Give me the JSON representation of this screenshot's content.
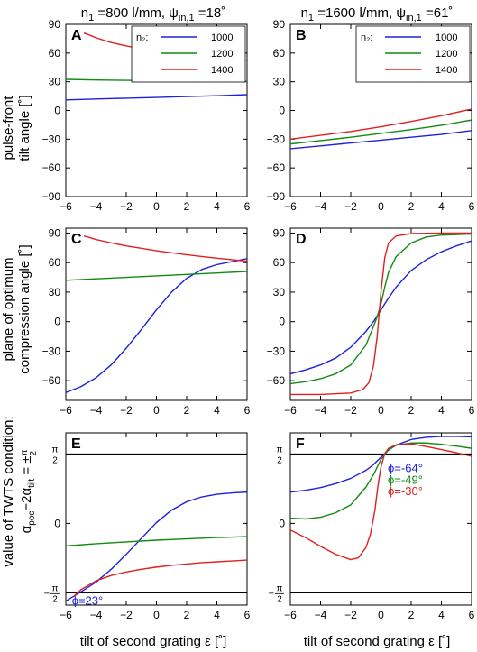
{
  "column_titles": [
    {
      "n": "n",
      "n_sub": "1",
      "n_rest": " =800 l/mm, ",
      "psi": "ψ",
      "psi_sub": "in,1",
      "psi_rest": " =18˚"
    },
    {
      "n": "n",
      "n_sub": "1",
      "n_rest": " =1600 l/mm, ",
      "psi": "ψ",
      "psi_sub": "in,1",
      "psi_rest": " =61˚"
    }
  ],
  "row_labels": [
    [
      "pulse-front",
      "tilt angle [˚]"
    ],
    [
      "plane of optimum",
      "compression angle [˚]"
    ],
    [
      "value of TWTS condition:",
      "α_poc−2α_tilt = ±π/2"
    ]
  ],
  "xlabel": "tilt of second grating ε [˚]",
  "legend_title": "n₂:",
  "colors": {
    "1000": "#1f1fe0",
    "1200": "#118a11",
    "1400": "#e01f1f",
    "axes": "#000000"
  },
  "chart_data": [
    {
      "panel": "A",
      "type": "line",
      "ylabel": "pulse-front tilt angle [˚]",
      "xlim": [
        -6,
        6
      ],
      "ylim": [
        -90,
        90
      ],
      "xticks": [
        "−6",
        "−4",
        "−2",
        "0",
        "2",
        "4",
        "6"
      ],
      "yticks": [
        "−90",
        "−60",
        "−30",
        "0",
        "30",
        "60",
        "90"
      ],
      "legend": [
        "1000",
        "1200",
        "1400"
      ],
      "legend_position": "top-right",
      "series": [
        {
          "name": "1000",
          "color": "#1f1fe0",
          "x": [
            -6,
            -4,
            -2,
            0,
            2,
            4,
            6
          ],
          "y": [
            11,
            12,
            12.8,
            13.6,
            14.5,
            15.4,
            16.5
          ]
        },
        {
          "name": "1200",
          "color": "#118a11",
          "x": [
            -6,
            -4,
            -2,
            0,
            2,
            4,
            6
          ],
          "y": [
            32.5,
            31.9,
            31.5,
            31.2,
            30.9,
            30.6,
            30.5
          ]
        },
        {
          "name": "1400",
          "color": "#e01f1f",
          "x": [
            -4.8,
            -4,
            -3,
            -2,
            -1,
            0,
            1,
            2,
            3,
            4,
            5,
            6
          ],
          "y": [
            81,
            76,
            71,
            67.5,
            64.5,
            62,
            60,
            58.2,
            56.5,
            55,
            53.8,
            52.5
          ]
        }
      ]
    },
    {
      "panel": "B",
      "type": "line",
      "xlim": [
        -6,
        6
      ],
      "ylim": [
        -90,
        90
      ],
      "xticks": [
        "−6",
        "−4",
        "−2",
        "0",
        "2",
        "4",
        "6"
      ],
      "yticks": [
        "−90",
        "−60",
        "−30",
        "0",
        "30",
        "60",
        "90"
      ],
      "legend": [
        "1000",
        "1200",
        "1400"
      ],
      "legend_position": "top-right",
      "series": [
        {
          "name": "1000",
          "color": "#1f1fe0",
          "x": [
            -6,
            -4,
            -2,
            0,
            2,
            4,
            6
          ],
          "y": [
            -40,
            -37,
            -34,
            -31,
            -28,
            -25,
            -21
          ]
        },
        {
          "name": "1200",
          "color": "#118a11",
          "x": [
            -6,
            -4,
            -2,
            0,
            2,
            4,
            6
          ],
          "y": [
            -35,
            -31.5,
            -28,
            -24,
            -20,
            -15.5,
            -10
          ]
        },
        {
          "name": "1400",
          "color": "#e01f1f",
          "x": [
            -6,
            -4,
            -2,
            0,
            2,
            4,
            6
          ],
          "y": [
            -30,
            -26,
            -22,
            -17,
            -11.5,
            -5.5,
            1.5
          ]
        }
      ]
    },
    {
      "panel": "C",
      "type": "line",
      "ylabel": "plane of optimum compression angle [˚]",
      "xlim": [
        -6,
        6
      ],
      "ylim": [
        -80,
        95
      ],
      "xticks": [
        "−6",
        "−4",
        "−2",
        "0",
        "2",
        "4",
        "6"
      ],
      "yticks": [
        "−90",
        "−60",
        "−30",
        "0",
        "30",
        "60",
        "90"
      ],
      "series": [
        {
          "name": "1000",
          "color": "#1f1fe0",
          "x": [
            -6,
            -5,
            -4,
            -3,
            -2,
            -1,
            0,
            1,
            2,
            3,
            4,
            5,
            6
          ],
          "y": [
            -72,
            -66,
            -57,
            -44,
            -27,
            -8,
            12,
            30,
            44,
            53,
            58,
            61,
            64
          ]
        },
        {
          "name": "1200",
          "color": "#118a11",
          "x": [
            -6,
            -4,
            -2,
            0,
            2,
            4,
            6
          ],
          "y": [
            42,
            43.5,
            45,
            46.5,
            48,
            49.5,
            51
          ]
        },
        {
          "name": "1400",
          "color": "#e01f1f",
          "x": [
            -4.8,
            -4,
            -3,
            -2,
            -1,
            0,
            1,
            2,
            3,
            4,
            5,
            6
          ],
          "y": [
            87,
            83.5,
            80,
            77,
            74.5,
            72,
            70,
            68,
            66.2,
            64.5,
            63,
            61.5
          ]
        }
      ]
    },
    {
      "panel": "D",
      "type": "line",
      "xlim": [
        -6,
        6
      ],
      "ylim": [
        -80,
        95
      ],
      "xticks": [
        "−6",
        "−4",
        "−2",
        "0",
        "2",
        "4",
        "6"
      ],
      "yticks": [
        "−90",
        "−60",
        "−30",
        "0",
        "30",
        "60",
        "90"
      ],
      "series": [
        {
          "name": "1000",
          "color": "#1f1fe0",
          "x": [
            -6,
            -5,
            -4,
            -3,
            -2,
            -1,
            -0.5,
            0,
            0.5,
            1,
            2,
            3,
            4,
            5,
            6
          ],
          "y": [
            -53,
            -49,
            -44,
            -37,
            -26,
            -10,
            0,
            12,
            24,
            35,
            52,
            63,
            71,
            77,
            82
          ]
        },
        {
          "name": "1200",
          "color": "#118a11",
          "x": [
            -6,
            -5,
            -4,
            -3,
            -2,
            -1,
            -0.5,
            -0.25,
            0,
            0.25,
            0.5,
            1,
            2,
            3,
            4,
            6
          ],
          "y": [
            -63,
            -61,
            -58,
            -53,
            -44,
            -24,
            -5,
            5,
            18,
            35,
            50,
            66,
            80,
            86,
            88,
            89
          ]
        },
        {
          "name": "1400",
          "color": "#e01f1f",
          "x": [
            -6,
            -4,
            -2,
            -1.2,
            -0.8,
            -0.5,
            -0.25,
            0,
            0.25,
            0.5,
            1,
            2,
            4,
            6
          ],
          "y": [
            -74,
            -74,
            -72.5,
            -69,
            -62,
            -45,
            -15,
            30,
            65,
            80,
            87,
            89.5,
            90,
            90
          ]
        }
      ]
    },
    {
      "panel": "E",
      "type": "line",
      "xlabel": "tilt of second grating ε [˚]",
      "ylabel": "value of TWTS condition",
      "xlim": [
        -6,
        6
      ],
      "ylim": [
        -1.85,
        2.05
      ],
      "xticks": [
        "−6",
        "−4",
        "−2",
        "0",
        "2",
        "4",
        "6"
      ],
      "ytick_values": [
        -1.5708,
        0,
        1.5708
      ],
      "reference_lines": [
        -1.5708,
        1.5708
      ],
      "annotation": {
        "text": "ϕ=23°",
        "color": "#1f1fe0"
      },
      "series": [
        {
          "name": "1000",
          "color": "#1f1fe0",
          "x": [
            -6,
            -5,
            -4,
            -3,
            -2,
            -1,
            0,
            1,
            2,
            3,
            4,
            5,
            6
          ],
          "y": [
            -1.76,
            -1.55,
            -1.33,
            -1.04,
            -0.7,
            -0.34,
            0.02,
            0.3,
            0.49,
            0.6,
            0.66,
            0.69,
            0.71
          ]
        },
        {
          "name": "1200",
          "color": "#118a11",
          "x": [
            -6,
            -4,
            -2,
            0,
            2,
            4,
            6
          ],
          "y": [
            -0.51,
            -0.46,
            -0.42,
            -0.38,
            -0.35,
            -0.32,
            -0.3
          ]
        },
        {
          "name": "1400",
          "color": "#e01f1f",
          "x": [
            -5.5,
            -5,
            -4,
            -3,
            -2,
            -1,
            0,
            1,
            2,
            3,
            4,
            5,
            6
          ],
          "y": [
            -1.66,
            -1.5,
            -1.3,
            -1.18,
            -1.1,
            -1.04,
            -0.99,
            -0.95,
            -0.92,
            -0.89,
            -0.87,
            -0.85,
            -0.83
          ]
        }
      ]
    },
    {
      "panel": "F",
      "type": "line",
      "xlabel": "tilt of second grating ε [˚]",
      "xlim": [
        -6,
        6
      ],
      "ylim": [
        -1.85,
        2.05
      ],
      "xticks": [
        "−6",
        "−4",
        "−2",
        "0",
        "2",
        "4",
        "6"
      ],
      "ytick_values": [
        -1.5708,
        0,
        1.5708
      ],
      "reference_lines": [
        -1.5708,
        1.5708
      ],
      "annotations": [
        {
          "text": "ϕ=-64°",
          "color": "#1f1fe0"
        },
        {
          "text": "ϕ=-49°",
          "color": "#118a11"
        },
        {
          "text": "ϕ=-30°",
          "color": "#e01f1f"
        }
      ],
      "series": [
        {
          "name": "1000",
          "color": "#1f1fe0",
          "x": [
            -6,
            -5,
            -4,
            -3,
            -2,
            -1,
            -0.5,
            0,
            0.5,
            1,
            2,
            3,
            4,
            5,
            6
          ],
          "y": [
            0.71,
            0.75,
            0.81,
            0.9,
            1.02,
            1.2,
            1.33,
            1.5,
            1.66,
            1.77,
            1.9,
            1.95,
            1.97,
            1.97,
            1.96
          ]
        },
        {
          "name": "1200",
          "color": "#118a11",
          "x": [
            -6,
            -5,
            -4,
            -3,
            -2,
            -1,
            -0.5,
            0,
            0.5,
            1,
            2,
            3,
            4,
            5,
            6
          ],
          "y": [
            0.12,
            0.1,
            0.14,
            0.24,
            0.42,
            0.82,
            1.1,
            1.45,
            1.67,
            1.77,
            1.82,
            1.82,
            1.79,
            1.75,
            1.7
          ]
        },
        {
          "name": "1400",
          "color": "#e01f1f",
          "x": [
            -6,
            -5,
            -4,
            -3,
            -2,
            -1.5,
            -1,
            -0.7,
            -0.4,
            -0.2,
            0,
            0.25,
            0.5,
            1,
            2,
            3,
            4,
            5,
            6
          ],
          "y": [
            -0.15,
            -0.32,
            -0.52,
            -0.7,
            -0.82,
            -0.78,
            -0.55,
            -0.25,
            0.3,
            0.85,
            1.28,
            1.58,
            1.7,
            1.78,
            1.8,
            1.74,
            1.67,
            1.6,
            1.52
          ]
        }
      ]
    }
  ]
}
